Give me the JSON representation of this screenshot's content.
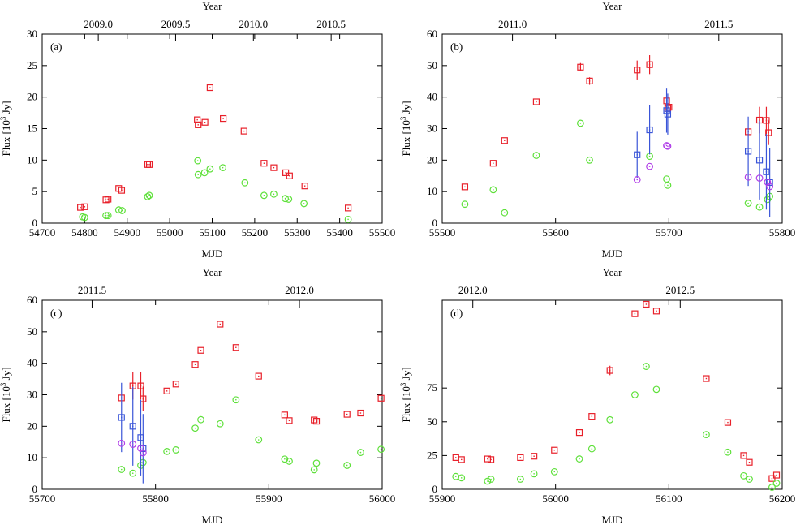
{
  "chart_data": [
    {
      "type": "scatter",
      "panel_label": "(a)",
      "xlabel": "MJD",
      "ylabel": "Flux [10",
      "ylabel_sup": "3",
      "ylabel_unit": " Jy]",
      "top_label": "Year",
      "xlim": [
        54700,
        55500
      ],
      "ylim": [
        0,
        30
      ],
      "x_ticks": [
        54700,
        54800,
        54900,
        55000,
        55100,
        55200,
        55300,
        55400,
        55500
      ],
      "y_ticks": [
        0,
        5,
        10,
        15,
        20,
        25,
        30
      ],
      "top_ticks": [
        {
          "label": "2009.0",
          "x": 54832
        },
        {
          "label": "2009.5",
          "x": 55014
        },
        {
          "label": "2010.0",
          "x": 55197
        },
        {
          "label": "2010.5",
          "x": 55380
        }
      ],
      "series": [
        {
          "name": "red",
          "marker": "square",
          "color": "#e8202a",
          "points": [
            [
              54790,
              2.5
            ],
            [
              54800,
              2.6
            ],
            [
              54850,
              3.7
            ],
            [
              54855,
              3.8
            ],
            [
              54880,
              5.5
            ],
            [
              54887,
              5.2
            ],
            [
              54948,
              9.3
            ],
            [
              54952,
              9.3
            ],
            [
              55065,
              16.4
            ],
            [
              55067,
              15.6
            ],
            [
              55083,
              16.0
            ],
            [
              55095,
              21.5
            ],
            [
              55126,
              16.6
            ],
            [
              55175,
              14.6
            ],
            [
              55222,
              9.5
            ],
            [
              55245,
              8.8
            ],
            [
              55273,
              8.0
            ],
            [
              55282,
              7.5
            ],
            [
              55318,
              5.9
            ],
            [
              55420,
              2.4
            ]
          ]
        },
        {
          "name": "green",
          "marker": "circle",
          "color": "#5ee03a",
          "points": [
            [
              54795,
              1.0
            ],
            [
              54800,
              0.9
            ],
            [
              54850,
              1.2
            ],
            [
              54855,
              1.2
            ],
            [
              54880,
              2.1
            ],
            [
              54888,
              2.0
            ],
            [
              54948,
              4.2
            ],
            [
              54952,
              4.4
            ],
            [
              55066,
              9.9
            ],
            [
              55067,
              7.7
            ],
            [
              55082,
              8.0
            ],
            [
              55095,
              8.6
            ],
            [
              55125,
              8.8
            ],
            [
              55177,
              6.4
            ],
            [
              55222,
              4.4
            ],
            [
              55245,
              4.6
            ],
            [
              55272,
              3.9
            ],
            [
              55280,
              3.8
            ],
            [
              55316,
              3.1
            ],
            [
              55420,
              0.6
            ]
          ]
        }
      ]
    },
    {
      "type": "scatter",
      "panel_label": "(b)",
      "xlabel": "MJD",
      "ylabel": "Flux [10",
      "ylabel_sup": "3",
      "ylabel_unit": " Jy]",
      "top_label": "Year",
      "xlim": [
        55500,
        55800
      ],
      "ylim": [
        0,
        60
      ],
      "x_ticks": [
        55500,
        55600,
        55700,
        55800
      ],
      "y_ticks": [
        0,
        10,
        20,
        30,
        40,
        50,
        60
      ],
      "top_ticks": [
        {
          "label": "2011.0",
          "x": 55562
        },
        {
          "label": "2011.5",
          "x": 55744
        }
      ],
      "series": [
        {
          "name": "red",
          "marker": "square",
          "color": "#e8202a",
          "points": [
            [
              55520,
              11.5
            ],
            [
              55545,
              19.0
            ],
            [
              55555,
              26.2
            ],
            [
              55583,
              38.5
            ],
            [
              55622,
              49.5
            ],
            [
              55630,
              45.1
            ],
            [
              55672,
              48.6
            ],
            [
              55683,
              50.3
            ],
            [
              55698,
              38.8
            ],
            [
              55699,
              36.4
            ],
            [
              55700,
              36.8
            ],
            [
              55770,
              29.0
            ],
            [
              55780,
              32.7
            ],
            [
              55786,
              32.6
            ],
            [
              55788,
              28.7
            ]
          ],
          "errors": [
            [
              55622,
              1.3
            ],
            [
              55630,
              1.2
            ],
            [
              55672,
              3.0
            ],
            [
              55683,
              3.0
            ],
            [
              55780,
              4.2
            ],
            [
              55786,
              4.3
            ],
            [
              55788,
              3.9
            ]
          ]
        },
        {
          "name": "green",
          "marker": "circle",
          "color": "#5ee03a",
          "points": [
            [
              55520,
              6.0
            ],
            [
              55545,
              10.6
            ],
            [
              55555,
              3.3
            ],
            [
              55583,
              21.5
            ],
            [
              55622,
              31.7
            ],
            [
              55630,
              20.0
            ],
            [
              55683,
              21.2
            ],
            [
              55698,
              14.0
            ],
            [
              55699,
              12.0
            ],
            [
              55770,
              6.3
            ],
            [
              55780,
              5.1
            ],
            [
              55787,
              7.5
            ],
            [
              55789,
              8.5
            ]
          ]
        },
        {
          "name": "blue",
          "marker": "square",
          "color": "#3a55d8",
          "points": [
            [
              55672,
              21.7
            ],
            [
              55683,
              29.6
            ],
            [
              55698,
              35.7
            ],
            [
              55699,
              34.6
            ],
            [
              55770,
              22.8
            ],
            [
              55780,
              20.0
            ],
            [
              55786,
              16.3
            ],
            [
              55789,
              12.9
            ]
          ],
          "errors": [
            [
              55672,
              7.3
            ],
            [
              55683,
              7.8
            ],
            [
              55698,
              7.0
            ],
            [
              55699,
              6.5
            ],
            [
              55770,
              11.0
            ],
            [
              55780,
              12.5
            ],
            [
              55786,
              12.0
            ],
            [
              55789,
              11.0
            ]
          ]
        },
        {
          "name": "violet",
          "marker": "circle",
          "color": "#b03ee8",
          "points": [
            [
              55672,
              13.8
            ],
            [
              55683,
              18.0
            ],
            [
              55698,
              24.6
            ],
            [
              55699,
              24.4
            ],
            [
              55770,
              14.6
            ],
            [
              55780,
              14.3
            ],
            [
              55787,
              13.0
            ],
            [
              55789,
              11.6
            ]
          ]
        }
      ]
    },
    {
      "type": "scatter",
      "panel_label": "(c)",
      "xlabel": "MJD",
      "ylabel": "Flux [10",
      "ylabel_sup": "3",
      "ylabel_unit": " Jy]",
      "top_label": "Year",
      "xlim": [
        55700,
        56000
      ],
      "ylim": [
        0,
        60
      ],
      "x_ticks": [
        55700,
        55800,
        55900,
        56000
      ],
      "y_ticks": [
        0,
        10,
        20,
        30,
        40,
        50,
        60
      ],
      "top_ticks": [
        {
          "label": "2011.5",
          "x": 55744
        },
        {
          "label": "2012.0",
          "x": 55927
        }
      ],
      "series": [
        {
          "name": "red",
          "marker": "square",
          "color": "#e8202a",
          "points": [
            [
              55770,
              29.0
            ],
            [
              55780,
              32.8
            ],
            [
              55787,
              32.8
            ],
            [
              55789,
              28.7
            ],
            [
              55810,
              31.2
            ],
            [
              55818,
              33.4
            ],
            [
              55835,
              39.6
            ],
            [
              55840,
              44.1
            ],
            [
              55857,
              52.4
            ],
            [
              55871,
              45.0
            ],
            [
              55891,
              35.9
            ],
            [
              55914,
              23.6
            ],
            [
              55918,
              21.8
            ],
            [
              55940,
              22.0
            ],
            [
              55942,
              21.6
            ],
            [
              55969,
              23.8
            ],
            [
              55981,
              24.2
            ],
            [
              55999,
              28.9
            ]
          ],
          "errors": [
            [
              55780,
              4.3
            ],
            [
              55787,
              4.3
            ],
            [
              55789,
              3.9
            ]
          ]
        },
        {
          "name": "green",
          "marker": "circle",
          "color": "#5ee03a",
          "points": [
            [
              55770,
              6.3
            ],
            [
              55780,
              5.1
            ],
            [
              55787,
              7.6
            ],
            [
              55789,
              8.5
            ],
            [
              55810,
              12.0
            ],
            [
              55818,
              12.5
            ],
            [
              55835,
              19.4
            ],
            [
              55840,
              22.1
            ],
            [
              55857,
              20.8
            ],
            [
              55871,
              28.4
            ],
            [
              55891,
              15.7
            ],
            [
              55914,
              9.6
            ],
            [
              55918,
              8.9
            ],
            [
              55940,
              6.2
            ],
            [
              55942,
              8.3
            ],
            [
              55969,
              7.6
            ],
            [
              55981,
              11.7
            ],
            [
              55999,
              12.7
            ]
          ]
        },
        {
          "name": "blue",
          "marker": "square",
          "color": "#3a55d8",
          "points": [
            [
              55770,
              22.8
            ],
            [
              55780,
              20.0
            ],
            [
              55787,
              16.4
            ],
            [
              55789,
              12.9
            ]
          ],
          "errors": [
            [
              55770,
              11.0
            ],
            [
              55780,
              12.5
            ],
            [
              55787,
              12.0
            ],
            [
              55789,
              11.0
            ]
          ]
        },
        {
          "name": "violet",
          "marker": "circle",
          "color": "#b03ee8",
          "points": [
            [
              55770,
              14.6
            ],
            [
              55780,
              14.3
            ],
            [
              55787,
              13.0
            ],
            [
              55789,
              11.6
            ]
          ]
        }
      ]
    },
    {
      "type": "scatter",
      "panel_label": "(d)",
      "xlabel": "MJD",
      "ylabel": "Flux [10",
      "ylabel_sup": "3",
      "ylabel_unit": " Jy]",
      "top_label": "Year",
      "xlim": [
        55900,
        56200
      ],
      "ylim": [
        0,
        140
      ],
      "x_ticks": [
        55900,
        56000,
        56100,
        56200
      ],
      "y_ticks": [
        0,
        25,
        50,
        75
      ],
      "top_ticks": [
        {
          "label": "2012.0",
          "x": 55927
        },
        {
          "label": "2012.5",
          "x": 56110
        }
      ],
      "series": [
        {
          "name": "red",
          "marker": "square",
          "color": "#e8202a",
          "points": [
            [
              55912,
              23.5
            ],
            [
              55917,
              22.0
            ],
            [
              55940,
              22.5
            ],
            [
              55943,
              22.0
            ],
            [
              55969,
              23.5
            ],
            [
              55981,
              24.5
            ],
            [
              55999,
              29.0
            ],
            [
              56021,
              42.0
            ],
            [
              56032,
              54.0
            ],
            [
              56048,
              88.0
            ],
            [
              56070,
              130.0
            ],
            [
              56080,
              137.0
            ],
            [
              56089,
              132.0
            ],
            [
              56133,
              82.0
            ],
            [
              56152,
              49.5
            ],
            [
              56166,
              25.0
            ],
            [
              56171,
              20.0
            ],
            [
              56191,
              8.0
            ],
            [
              56195,
              10.5
            ]
          ],
          "errors": [
            [
              56048,
              3.5
            ]
          ]
        },
        {
          "name": "green",
          "marker": "circle",
          "color": "#5ee03a",
          "points": [
            [
              55912,
              9.5
            ],
            [
              55917,
              8.5
            ],
            [
              55940,
              6.0
            ],
            [
              55943,
              7.5
            ],
            [
              55969,
              7.5
            ],
            [
              55981,
              11.5
            ],
            [
              55999,
              13.0
            ],
            [
              56021,
              22.5
            ],
            [
              56032,
              30.0
            ],
            [
              56048,
              51.5
            ],
            [
              56070,
              70.0
            ],
            [
              56080,
              91.0
            ],
            [
              56089,
              74.0
            ],
            [
              56133,
              40.5
            ],
            [
              56152,
              27.5
            ],
            [
              56166,
              10.0
            ],
            [
              56171,
              7.5
            ],
            [
              56191,
              1.5
            ],
            [
              56195,
              4.5
            ]
          ]
        }
      ]
    }
  ]
}
